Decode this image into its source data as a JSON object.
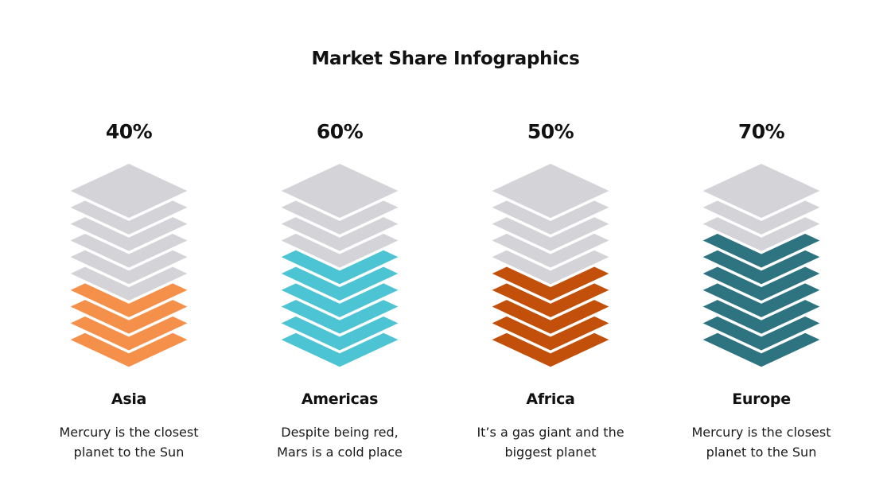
{
  "title": "Market Share Infographics",
  "colors": {
    "inactive": "#D3D3D8",
    "separator": "#FFFFFF"
  },
  "regions": [
    {
      "name": "Asia",
      "percent_label": "40%",
      "value": 40,
      "color": "#F5904A",
      "description": [
        "Mercury is the closest",
        "planet to the Sun"
      ]
    },
    {
      "name": "Americas",
      "percent_label": "60%",
      "value": 60,
      "color": "#4DC4D3",
      "description": [
        "Despite being red,",
        "Mars is a cold place"
      ]
    },
    {
      "name": "Africa",
      "percent_label": "50%",
      "value": 50,
      "color": "#C2500A",
      "description": [
        "It’s a gas giant and the",
        "biggest planet"
      ]
    },
    {
      "name": "Europe",
      "percent_label": "70%",
      "value": 70,
      "color": "#2E7480",
      "description": [
        "Mercury is the closest",
        "planet to the Sun"
      ]
    }
  ],
  "chart_data": {
    "type": "bar",
    "title": "Market Share Infographics",
    "categories": [
      "Asia",
      "Americas",
      "Africa",
      "Europe"
    ],
    "values": [
      40,
      60,
      50,
      70
    ],
    "unit": "%",
    "ylim": [
      0,
      100
    ],
    "layers_per_stack": 10,
    "series_colors": [
      "#F5904A",
      "#4DC4D3",
      "#C2500A",
      "#2E7480"
    ],
    "annotations": [
      "Mercury is the closest planet to the Sun",
      "Despite being red, Mars is a cold place",
      "It’s a gas giant and the biggest planet",
      "Mercury is the closest planet to the Sun"
    ]
  }
}
